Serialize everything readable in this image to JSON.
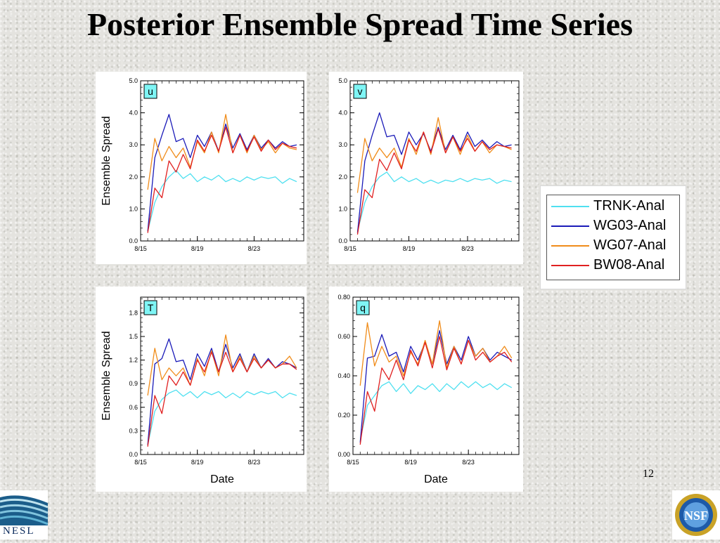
{
  "slide": {
    "title": "Posterior Ensemble Spread Time Series",
    "page_number": "12",
    "logos": {
      "left": "NESL",
      "right": "NSF"
    }
  },
  "legend": {
    "entries": [
      {
        "label": "TRNK-Anal",
        "color": "#4fe0f0"
      },
      {
        "label": "WG03-Anal",
        "color": "#1a1ab8"
      },
      {
        "label": "WG07-Anal",
        "color": "#f08c1a"
      },
      {
        "label": "BW08-Anal",
        "color": "#e02020"
      }
    ]
  },
  "chart_data": [
    {
      "type": "line",
      "panel_label": "u",
      "ylabel": "Ensemble Spread",
      "xlabel": "",
      "ylim": [
        0,
        5
      ],
      "yticks": [
        "0.0",
        "1.0",
        "2.0",
        "3.0",
        "4.0",
        "5.0"
      ],
      "xlim": [
        0,
        23
      ],
      "xticks": [
        {
          "x": 0,
          "label": "8/15"
        },
        {
          "x": 8,
          "label": "8/19"
        },
        {
          "x": 16,
          "label": "8/23"
        }
      ],
      "x": [
        1,
        2,
        3,
        4,
        5,
        6,
        7,
        8,
        9,
        10,
        11,
        12,
        13,
        14,
        15,
        16,
        17,
        18,
        19,
        20,
        21,
        22
      ],
      "series": [
        {
          "name": "TRNK-Anal",
          "color": "#4fe0f0",
          "values": [
            0.3,
            1.2,
            1.7,
            2.0,
            2.2,
            1.95,
            2.1,
            1.85,
            2.0,
            1.9,
            2.05,
            1.85,
            1.95,
            1.85,
            2.0,
            1.9,
            2.0,
            1.95,
            2.0,
            1.8,
            1.95,
            1.85
          ]
        },
        {
          "name": "WG03-Anal",
          "color": "#1a1ab8",
          "values": [
            0.3,
            2.6,
            3.3,
            3.95,
            3.1,
            3.2,
            2.6,
            3.3,
            2.95,
            3.4,
            2.8,
            3.65,
            2.9,
            3.35,
            2.85,
            3.3,
            2.9,
            3.15,
            2.9,
            3.1,
            2.95,
            3.0
          ]
        },
        {
          "name": "WG07-Anal",
          "color": "#f08c1a",
          "values": [
            1.6,
            3.2,
            2.5,
            2.95,
            2.6,
            2.9,
            2.3,
            3.1,
            2.75,
            3.4,
            2.75,
            3.95,
            2.75,
            3.3,
            2.75,
            3.3,
            2.85,
            3.1,
            2.75,
            3.05,
            2.9,
            2.85
          ]
        },
        {
          "name": "BW08-Anal",
          "color": "#e02020",
          "values": [
            0.25,
            1.65,
            1.35,
            2.5,
            2.15,
            2.7,
            2.25,
            3.15,
            2.8,
            3.3,
            2.8,
            3.55,
            2.75,
            3.3,
            2.8,
            3.25,
            2.8,
            3.15,
            2.85,
            3.05,
            2.95,
            2.9
          ]
        }
      ]
    },
    {
      "type": "line",
      "panel_label": "v",
      "ylabel": "",
      "xlabel": "",
      "ylim": [
        0,
        5
      ],
      "yticks": [
        "0.0",
        "1.0",
        "2.0",
        "3.0",
        "4.0",
        "5.0"
      ],
      "xlim": [
        0,
        23
      ],
      "xticks": [
        {
          "x": 0,
          "label": "8/15"
        },
        {
          "x": 8,
          "label": "8/19"
        },
        {
          "x": 16,
          "label": "8/23"
        }
      ],
      "x": [
        1,
        2,
        3,
        4,
        5,
        6,
        7,
        8,
        9,
        10,
        11,
        12,
        13,
        14,
        15,
        16,
        17,
        18,
        19,
        20,
        21,
        22
      ],
      "series": [
        {
          "name": "TRNK-Anal",
          "color": "#4fe0f0",
          "values": [
            0.3,
            1.2,
            1.7,
            2.0,
            2.15,
            1.85,
            2.0,
            1.85,
            1.95,
            1.8,
            1.9,
            1.8,
            1.9,
            1.85,
            1.95,
            1.85,
            1.95,
            1.9,
            1.95,
            1.8,
            1.9,
            1.85
          ]
        },
        {
          "name": "WG03-Anal",
          "color": "#1a1ab8",
          "values": [
            0.25,
            2.5,
            3.3,
            4.0,
            3.25,
            3.3,
            2.7,
            3.4,
            3.0,
            3.35,
            2.8,
            3.55,
            2.85,
            3.3,
            2.85,
            3.4,
            2.95,
            3.15,
            2.9,
            3.1,
            2.95,
            3.0
          ]
        },
        {
          "name": "WG07-Anal",
          "color": "#f08c1a",
          "values": [
            1.5,
            3.2,
            2.5,
            2.9,
            2.6,
            2.9,
            2.3,
            3.2,
            2.7,
            3.4,
            2.7,
            3.85,
            2.75,
            3.25,
            2.7,
            3.3,
            2.8,
            3.1,
            2.75,
            3.0,
            2.95,
            2.85
          ]
        },
        {
          "name": "BW08-Anal",
          "color": "#e02020",
          "values": [
            0.2,
            1.6,
            1.35,
            2.55,
            2.2,
            2.75,
            2.25,
            3.15,
            2.8,
            3.4,
            2.75,
            3.5,
            2.75,
            3.25,
            2.8,
            3.2,
            2.8,
            3.1,
            2.85,
            3.0,
            2.95,
            2.9
          ]
        }
      ]
    },
    {
      "type": "line",
      "panel_label": "T",
      "ylabel": "Ensemble Spread",
      "xlabel": "Date",
      "ylim": [
        0,
        2
      ],
      "yticks": [
        "0.0",
        "0.3",
        "0.6",
        "0.9",
        "1.2",
        "1.5",
        "1.8"
      ],
      "ytick_values": [
        0,
        0.3,
        0.6,
        0.9,
        1.2,
        1.5,
        1.8
      ],
      "xlim": [
        0,
        23
      ],
      "xticks": [
        {
          "x": 0,
          "label": "8/15"
        },
        {
          "x": 8,
          "label": "8/19"
        },
        {
          "x": 16,
          "label": "8/23"
        }
      ],
      "x": [
        1,
        2,
        3,
        4,
        5,
        6,
        7,
        8,
        9,
        10,
        11,
        12,
        13,
        14,
        15,
        16,
        17,
        18,
        19,
        20,
        21,
        22
      ],
      "series": [
        {
          "name": "TRNK-Anal",
          "color": "#4fe0f0",
          "values": [
            0.12,
            0.55,
            0.7,
            0.78,
            0.82,
            0.74,
            0.8,
            0.72,
            0.8,
            0.76,
            0.8,
            0.72,
            0.78,
            0.72,
            0.8,
            0.76,
            0.8,
            0.77,
            0.8,
            0.72,
            0.78,
            0.75
          ]
        },
        {
          "name": "WG03-Anal",
          "color": "#1a1ab8",
          "values": [
            0.12,
            1.15,
            1.22,
            1.47,
            1.18,
            1.2,
            0.95,
            1.28,
            1.12,
            1.35,
            1.05,
            1.4,
            1.1,
            1.28,
            1.05,
            1.28,
            1.1,
            1.22,
            1.1,
            1.18,
            1.15,
            1.1
          ]
        },
        {
          "name": "WG07-Anal",
          "color": "#f08c1a",
          "values": [
            0.75,
            1.35,
            0.95,
            1.1,
            1.0,
            1.1,
            0.88,
            1.22,
            1.0,
            1.32,
            1.0,
            1.52,
            1.05,
            1.25,
            1.05,
            1.25,
            1.1,
            1.2,
            1.1,
            1.15,
            1.25,
            1.1
          ]
        },
        {
          "name": "BW08-Anal",
          "color": "#e02020",
          "values": [
            0.1,
            0.75,
            0.52,
            1.0,
            0.88,
            1.05,
            0.88,
            1.2,
            1.05,
            1.3,
            1.05,
            1.3,
            1.05,
            1.22,
            1.05,
            1.22,
            1.1,
            1.2,
            1.1,
            1.15,
            1.15,
            1.08
          ]
        }
      ]
    },
    {
      "type": "line",
      "panel_label": "q",
      "ylabel": "",
      "xlabel": "Date",
      "ylim": [
        0,
        0.8
      ],
      "yticks": [
        "0.00",
        "0.20",
        "0.40",
        "0.60",
        "0.80"
      ],
      "xlim": [
        0,
        23
      ],
      "xticks": [
        {
          "x": 0,
          "label": "8/15"
        },
        {
          "x": 8,
          "label": "8/19"
        },
        {
          "x": 16,
          "label": "8/23"
        }
      ],
      "x": [
        1,
        2,
        3,
        4,
        5,
        6,
        7,
        8,
        9,
        10,
        11,
        12,
        13,
        14,
        15,
        16,
        17,
        18,
        19,
        20,
        21,
        22
      ],
      "series": [
        {
          "name": "TRNK-Anal",
          "color": "#4fe0f0",
          "values": [
            0.07,
            0.25,
            0.3,
            0.35,
            0.37,
            0.32,
            0.36,
            0.31,
            0.35,
            0.33,
            0.36,
            0.32,
            0.36,
            0.33,
            0.37,
            0.34,
            0.37,
            0.34,
            0.36,
            0.33,
            0.36,
            0.34
          ]
        },
        {
          "name": "WG03-Anal",
          "color": "#1a1ab8",
          "values": [
            0.06,
            0.49,
            0.5,
            0.61,
            0.5,
            0.52,
            0.42,
            0.55,
            0.48,
            0.57,
            0.46,
            0.63,
            0.46,
            0.55,
            0.48,
            0.6,
            0.5,
            0.54,
            0.48,
            0.52,
            0.5,
            0.48
          ]
        },
        {
          "name": "WG07-Anal",
          "color": "#f08c1a",
          "values": [
            0.35,
            0.67,
            0.45,
            0.55,
            0.47,
            0.5,
            0.4,
            0.52,
            0.46,
            0.58,
            0.46,
            0.68,
            0.44,
            0.55,
            0.46,
            0.58,
            0.5,
            0.54,
            0.47,
            0.5,
            0.55,
            0.49
          ]
        },
        {
          "name": "BW08-Anal",
          "color": "#e02020",
          "values": [
            0.05,
            0.32,
            0.22,
            0.44,
            0.38,
            0.48,
            0.38,
            0.53,
            0.45,
            0.57,
            0.44,
            0.6,
            0.43,
            0.54,
            0.46,
            0.58,
            0.48,
            0.52,
            0.47,
            0.5,
            0.52,
            0.47
          ]
        }
      ]
    }
  ]
}
